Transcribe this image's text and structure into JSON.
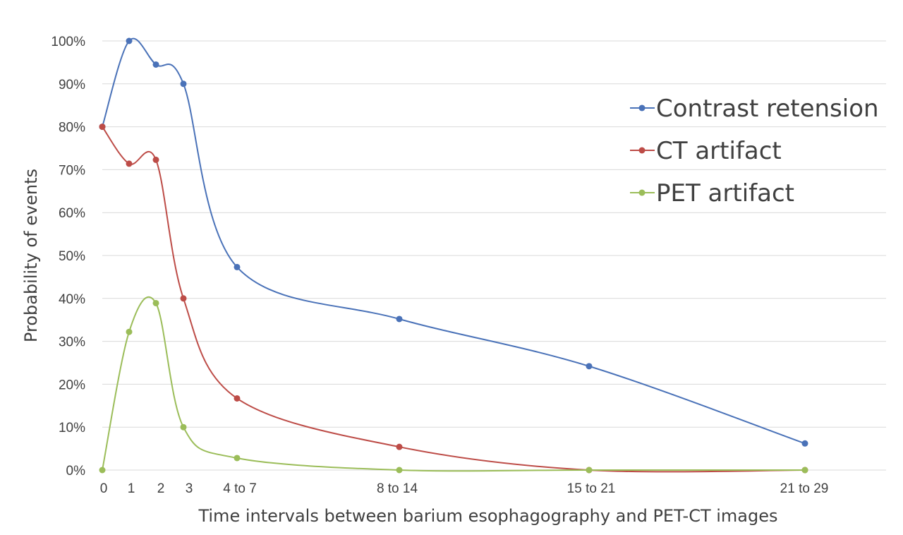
{
  "chart_data": {
    "type": "line",
    "title": "",
    "xlabel": "Time intervals between barium esophagography and PET-CT images",
    "ylabel": "Probability of events",
    "categories": [
      "0",
      "1",
      "2",
      "3",
      "4 to 7",
      "8 to 14",
      "15 to 21",
      "21 to 29"
    ],
    "y_tick_labels": [
      "0%",
      "10%",
      "20%",
      "30%",
      "40%",
      "50%",
      "60%",
      "70%",
      "80%",
      "90%",
      "100%"
    ],
    "ylim": [
      0,
      100
    ],
    "grid": true,
    "smooth": true,
    "legend_position": "top-right",
    "series": [
      {
        "name": "Contrast retension",
        "color": "#4a72b8",
        "x": [
          0,
          1,
          2,
          3,
          5.5,
          11,
          18,
          25
        ],
        "values": [
          80,
          100,
          94.5,
          90,
          47.3,
          35.2,
          24.2,
          6.2
        ]
      },
      {
        "name": "CT artifact",
        "color": "#bd4c47",
        "x": [
          0,
          1,
          2,
          3,
          5.5,
          11,
          18,
          25
        ],
        "values": [
          80,
          71.4,
          72.3,
          40,
          16.7,
          5.4,
          0,
          0
        ]
      },
      {
        "name": "PET artifact",
        "color": "#9bbd59",
        "x": [
          0,
          1,
          2,
          3,
          5.5,
          11,
          18,
          25
        ],
        "values": [
          0,
          32.2,
          38.9,
          10,
          2.8,
          0,
          0,
          0
        ]
      }
    ]
  }
}
